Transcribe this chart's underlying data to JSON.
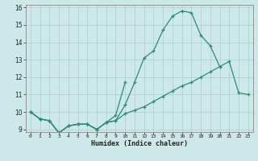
{
  "xlabel": "Humidex (Indice chaleur)",
  "line_color": "#2e8b77",
  "bg_color": "#cce8e8",
  "grid_color": "#aacfcf",
  "ylim": [
    9,
    16
  ],
  "xlim": [
    -0.5,
    23.5
  ],
  "yticks": [
    9,
    10,
    11,
    12,
    13,
    14,
    15,
    16
  ],
  "xticks": [
    0,
    1,
    2,
    3,
    4,
    5,
    6,
    7,
    8,
    9,
    10,
    11,
    12,
    13,
    14,
    15,
    16,
    17,
    18,
    19,
    20,
    21,
    22,
    23
  ],
  "line1_x": [
    0,
    1,
    2,
    3,
    4,
    5,
    6,
    7,
    8,
    9,
    10,
    11,
    12,
    13,
    14,
    15,
    16,
    17,
    18,
    19,
    20
  ],
  "line1_y": [
    10.0,
    9.6,
    9.5,
    8.8,
    9.2,
    9.3,
    9.3,
    9.0,
    9.4,
    9.5,
    10.4,
    11.7,
    13.1,
    13.5,
    14.7,
    15.5,
    15.8,
    15.7,
    14.4,
    13.8,
    12.6
  ],
  "line2_x": [
    0,
    1,
    2,
    3,
    4,
    5,
    6,
    7,
    8,
    9,
    10,
    11,
    12,
    13,
    14,
    15,
    16,
    17,
    18,
    19,
    20,
    21,
    22,
    23
  ],
  "line2_y": [
    10.0,
    9.6,
    9.5,
    8.8,
    9.2,
    9.3,
    9.3,
    9.0,
    9.4,
    9.5,
    9.9,
    10.1,
    10.3,
    10.6,
    10.9,
    11.2,
    11.5,
    11.7,
    12.0,
    12.3,
    12.6,
    12.9,
    11.1,
    11.0
  ],
  "line3_x": [
    0,
    1,
    2,
    3,
    4,
    5,
    6,
    7,
    8,
    9,
    10
  ],
  "line3_y": [
    10.0,
    9.6,
    9.5,
    8.8,
    9.2,
    9.3,
    9.3,
    9.0,
    9.4,
    9.8,
    11.7
  ]
}
